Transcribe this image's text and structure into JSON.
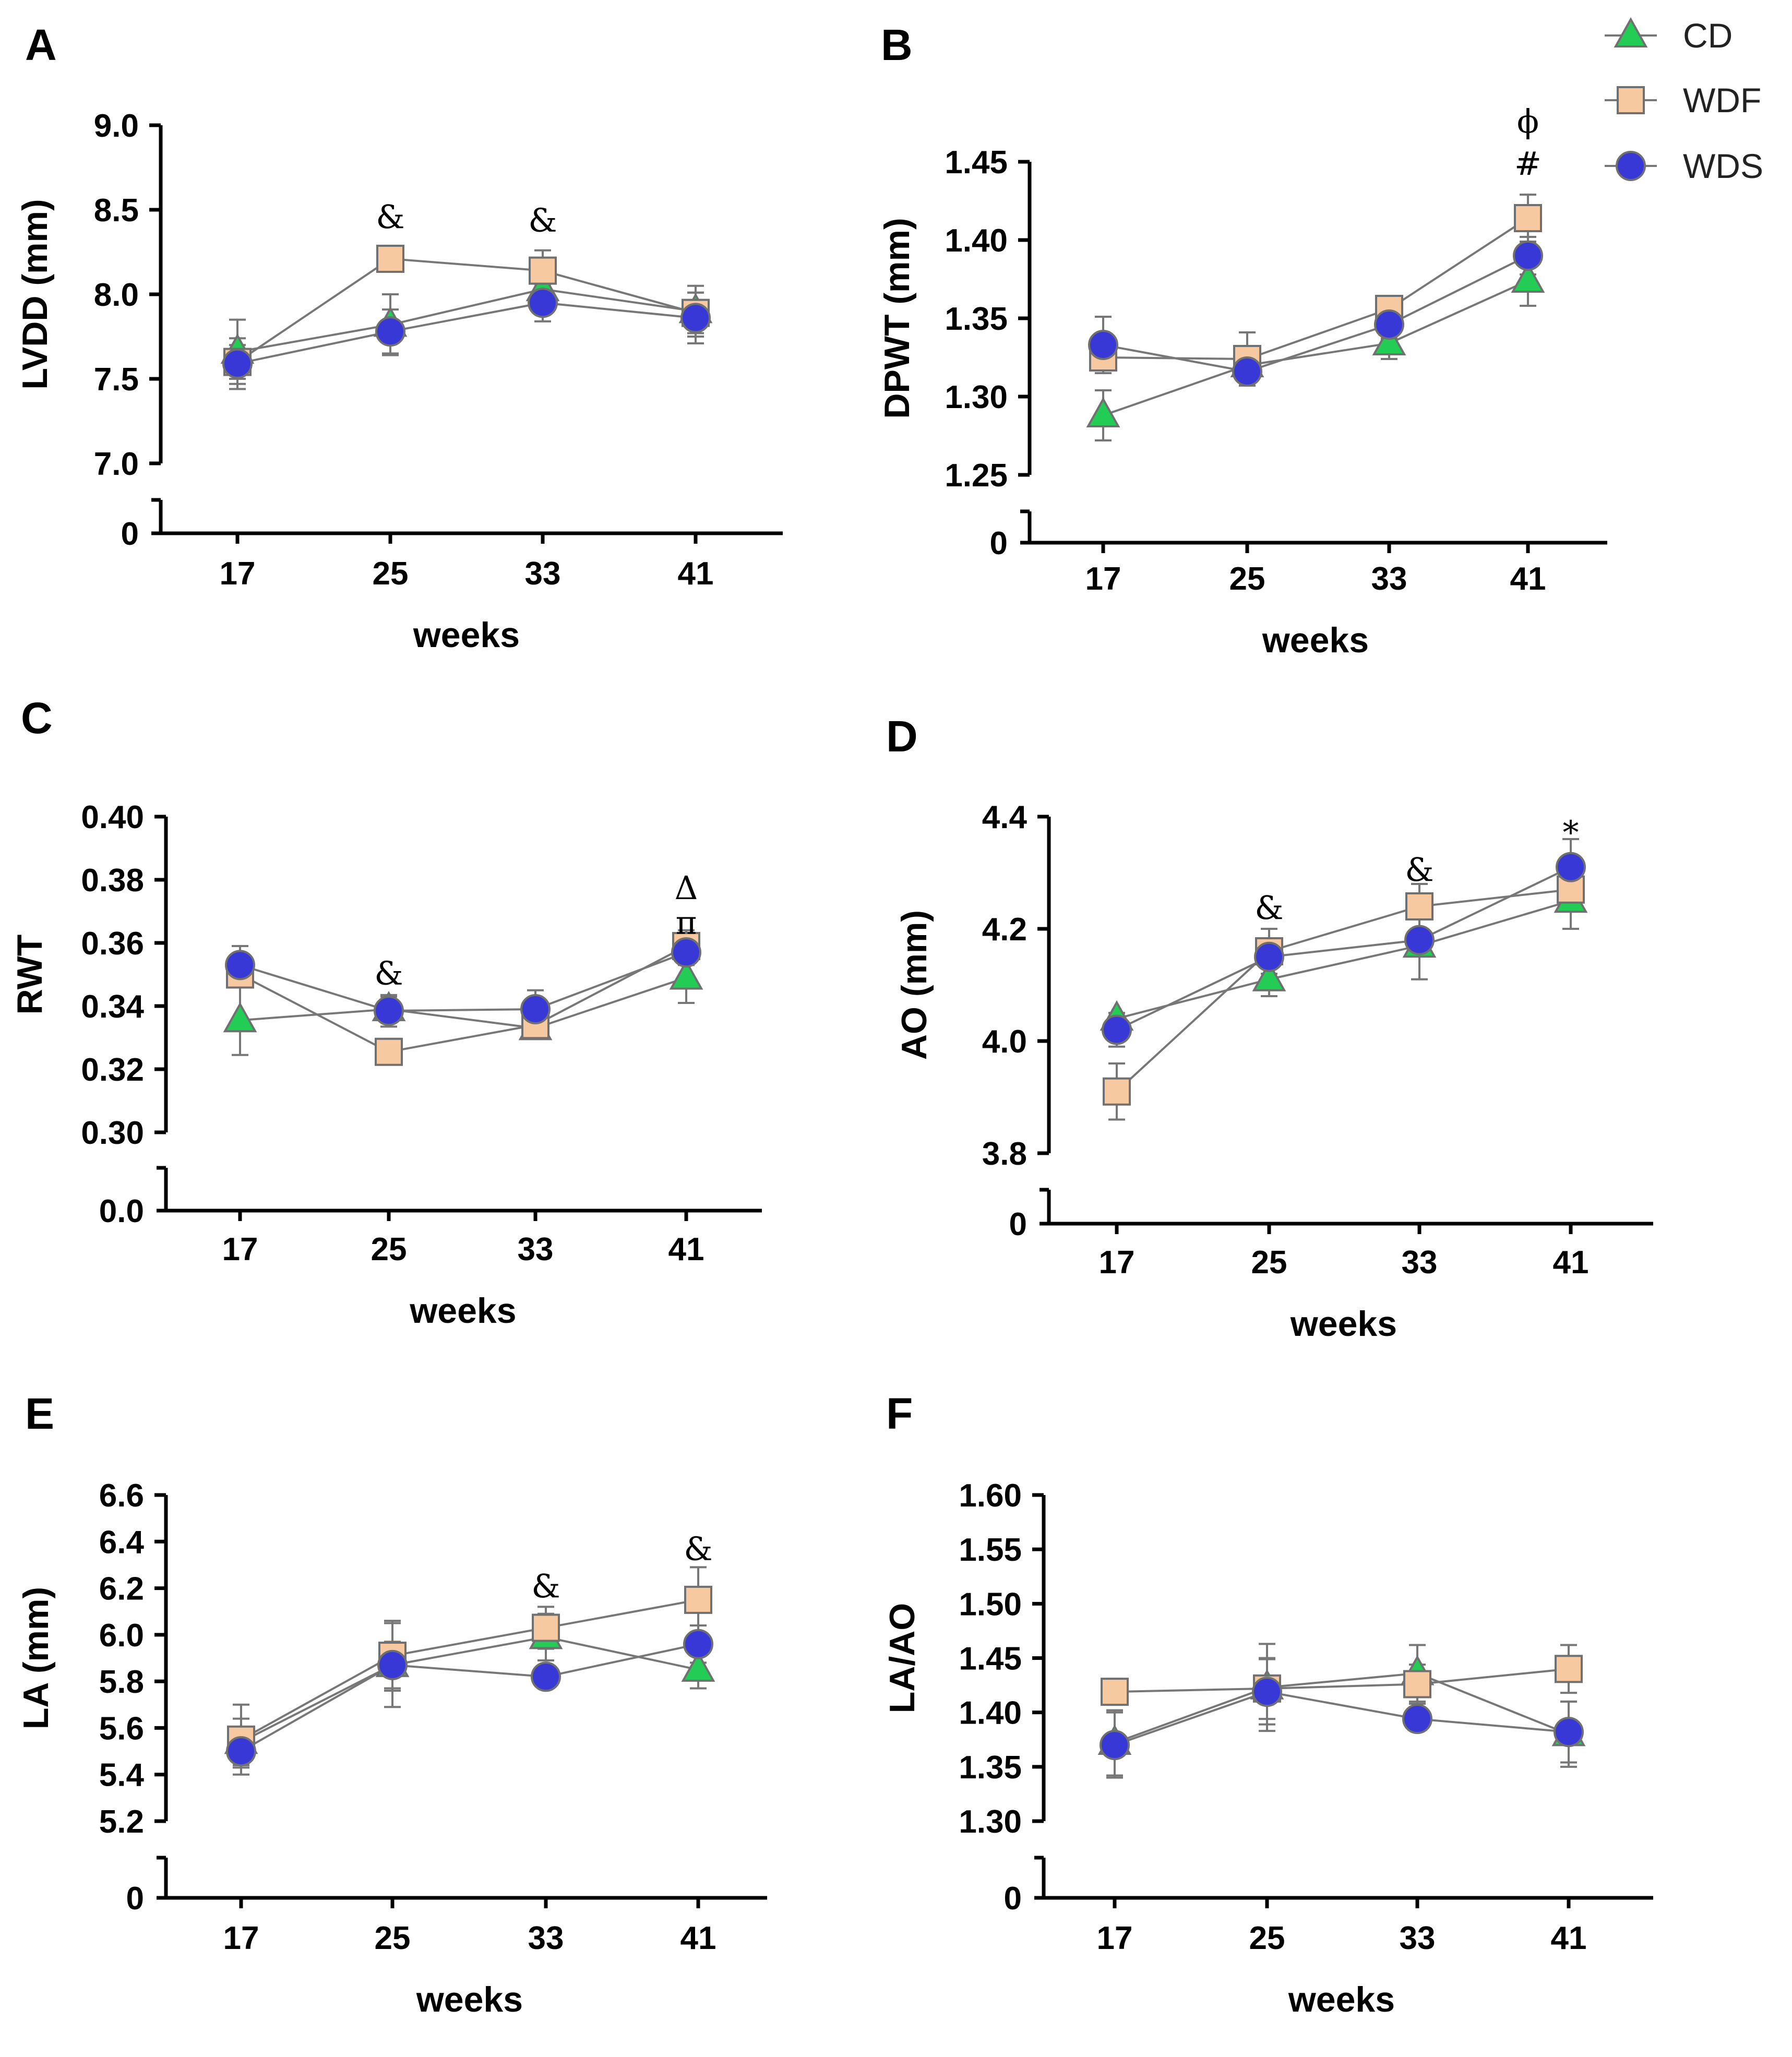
{
  "legend": [
    {
      "key": "CD",
      "label": "CD",
      "marker": "triangle",
      "color": "#22cc55"
    },
    {
      "key": "WDF",
      "label": "WDF",
      "marker": "square",
      "color": "#f7c9a0"
    },
    {
      "key": "WDS",
      "label": "WDS",
      "marker": "circle",
      "color": "#3838d6"
    }
  ],
  "colors": {
    "line": "#777777",
    "error": "#777777",
    "axis": "#000000",
    "CD": "#22cc55",
    "WDF": "#f7c9a0",
    "WDS": "#3838d6"
  },
  "chart_data": [
    {
      "id": "A",
      "letter": "A",
      "type": "line",
      "xlabel": "weeks",
      "ylabel": "LVDD (mm)",
      "x": [
        "17",
        "25",
        "33",
        "41"
      ],
      "ylim": [
        7.0,
        9.0
      ],
      "yticks": [
        "7.0",
        "7.5",
        "8.0",
        "8.5",
        "9.0"
      ],
      "ybreak_label": "0",
      "series": [
        {
          "name": "CD",
          "values": [
            7.66,
            7.82,
            8.03,
            7.9
          ],
          "errors": [
            0.19,
            0.18,
            0.1,
            0.15
          ]
        },
        {
          "name": "WDF",
          "values": [
            7.6,
            8.21,
            8.14,
            7.89
          ],
          "errors": [
            0.1,
            0.06,
            0.12,
            0.12
          ]
        },
        {
          "name": "WDS",
          "values": [
            7.59,
            7.78,
            7.95,
            7.86
          ],
          "errors": [
            0.15,
            0.13,
            0.11,
            0.15
          ]
        }
      ],
      "annotations": [
        {
          "x": "25",
          "y": 8.46,
          "text": "&"
        },
        {
          "x": "33",
          "y": 8.44,
          "text": "&"
        }
      ]
    },
    {
      "id": "B",
      "letter": "B",
      "type": "line",
      "xlabel": "weeks",
      "ylabel": "DPWT (mm)",
      "x": [
        "17",
        "25",
        "33",
        "41"
      ],
      "ylim": [
        1.25,
        1.45
      ],
      "yticks": [
        "1.25",
        "1.30",
        "1.35",
        "1.40",
        "1.45"
      ],
      "ybreak_label": "0",
      "series": [
        {
          "name": "CD",
          "values": [
            1.288,
            1.32,
            1.334,
            1.374
          ],
          "errors": [
            0.016,
            0.005,
            0.01,
            0.016
          ]
        },
        {
          "name": "WDF",
          "values": [
            1.325,
            1.324,
            1.356,
            1.414
          ],
          "errors": [
            0.008,
            0.017,
            0.006,
            0.015
          ]
        },
        {
          "name": "WDS",
          "values": [
            1.333,
            1.316,
            1.346,
            1.39
          ],
          "errors": [
            0.018,
            0.004,
            0.009,
            0.012
          ]
        }
      ],
      "annotations": [
        {
          "x": "41",
          "y": 1.449,
          "text": "#"
        },
        {
          "x": "41",
          "y": 1.476,
          "text": "ϕ"
        }
      ]
    },
    {
      "id": "C",
      "letter": "C",
      "type": "line",
      "xlabel": "weeks",
      "ylabel": "RWT",
      "x": [
        "17",
        "25",
        "33",
        "41"
      ],
      "ylim": [
        0.3,
        0.4
      ],
      "yticks": [
        "0.30",
        "0.32",
        "0.34",
        "0.36",
        "0.38",
        "0.40"
      ],
      "ybreak_label": "0.0",
      "series": [
        {
          "name": "CD",
          "values": [
            0.3355,
            0.339,
            0.333,
            0.349
          ],
          "errors": [
            0.011,
            0.004,
            0.003,
            0.008
          ]
        },
        {
          "name": "WDF",
          "values": [
            0.35,
            0.3255,
            0.334,
            0.359
          ],
          "errors": [
            0.004,
            0.002,
            0.004,
            0.005
          ]
        },
        {
          "name": "WDS",
          "values": [
            0.353,
            0.3385,
            0.339,
            0.357
          ],
          "errors": [
            0.006,
            0.005,
            0.006,
            0.004
          ]
        }
      ],
      "annotations": [
        {
          "x": "25",
          "y": 0.3505,
          "text": "&"
        },
        {
          "x": "41",
          "y": 0.3665,
          "text": "π"
        },
        {
          "x": "41",
          "y": 0.3775,
          "text": "Δ"
        }
      ]
    },
    {
      "id": "D",
      "letter": "D",
      "type": "line",
      "xlabel": "weeks",
      "ylabel": "AO (mm)",
      "x": [
        "17",
        "25",
        "33",
        "41"
      ],
      "ylim": [
        3.8,
        4.4
      ],
      "yticks": [
        "3.8",
        "4.0",
        "4.2",
        "4.4"
      ],
      "ybreak_label": "0",
      "series": [
        {
          "name": "CD",
          "values": [
            4.04,
            4.11,
            4.17,
            4.25
          ],
          "errors": [
            0.01,
            0.03,
            0.06,
            0.05
          ]
        },
        {
          "name": "WDF",
          "values": [
            3.91,
            4.16,
            4.24,
            4.27
          ],
          "errors": [
            0.05,
            0.04,
            0.04,
            0.03
          ]
        },
        {
          "name": "WDS",
          "values": [
            4.02,
            4.15,
            4.18,
            4.31
          ],
          "errors": [
            0.03,
            0.02,
            0.02,
            0.05
          ]
        }
      ],
      "annotations": [
        {
          "x": "25",
          "y": 4.238,
          "text": "&"
        },
        {
          "x": "33",
          "y": 4.306,
          "text": "&"
        },
        {
          "x": "41",
          "y": 4.372,
          "text": "*"
        }
      ]
    },
    {
      "id": "E",
      "letter": "E",
      "type": "line",
      "xlabel": "weeks",
      "ylabel": "LA (mm)",
      "x": [
        "17",
        "25",
        "33",
        "41"
      ],
      "ylim": [
        5.2,
        6.6
      ],
      "yticks": [
        "5.2",
        "5.4",
        "5.6",
        "5.8",
        "6.0",
        "6.2",
        "6.4",
        "6.6"
      ],
      "ybreak_label": "0",
      "series": [
        {
          "name": "CD",
          "values": [
            5.54,
            5.87,
            5.99,
            5.85
          ],
          "errors": [
            0.1,
            0.18,
            0.1,
            0.08
          ]
        },
        {
          "name": "WDF",
          "values": [
            5.55,
            5.91,
            6.03,
            6.15
          ],
          "errors": [
            0.15,
            0.15,
            0.09,
            0.14
          ]
        },
        {
          "name": "WDS",
          "values": [
            5.5,
            5.87,
            5.82,
            5.96
          ],
          "errors": [
            0.07,
            0.1,
            0.02,
            0.08
          ]
        }
      ],
      "annotations": [
        {
          "x": "33",
          "y": 6.21,
          "text": "&"
        },
        {
          "x": "41",
          "y": 6.37,
          "text": "&"
        }
      ]
    },
    {
      "id": "F",
      "letter": "F",
      "type": "line",
      "xlabel": "weeks",
      "ylabel": "LA/AO",
      "x": [
        "17",
        "25",
        "33",
        "41"
      ],
      "ylim": [
        1.3,
        1.6
      ],
      "yticks": [
        "1.30",
        "1.35",
        "1.40",
        "1.45",
        "1.50",
        "1.55",
        "1.60"
      ],
      "ybreak_label": "0",
      "series": [
        {
          "name": "CD",
          "values": [
            1.372,
            1.423,
            1.436,
            1.38
          ],
          "errors": [
            0.03,
            0.04,
            0.026,
            0.03
          ]
        },
        {
          "name": "WDF",
          "values": [
            1.419,
            1.422,
            1.426,
            1.44
          ],
          "errors": [
            0.012,
            0.028,
            0.018,
            0.022
          ]
        },
        {
          "name": "WDS",
          "values": [
            1.37,
            1.419,
            1.394,
            1.382
          ],
          "errors": [
            0.03,
            0.03,
            0.01,
            0.028
          ]
        }
      ],
      "annotations": []
    }
  ]
}
